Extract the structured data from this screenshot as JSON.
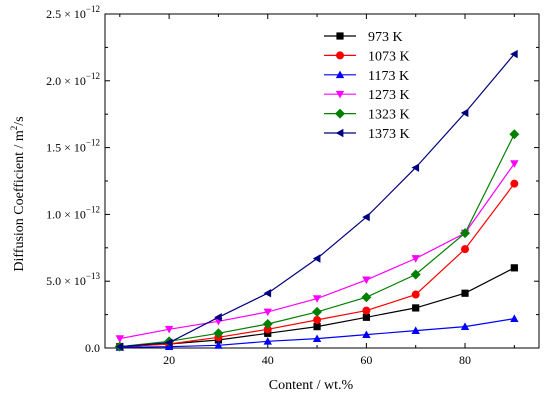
{
  "chart_data": {
    "type": "line",
    "xlabel": "Content / wt.%",
    "ylabel_base": "Diffusion Coefficient / m",
    "ylabel_sup": "2",
    "ylabel_tail": "/s",
    "xlim": [
      7,
      95
    ],
    "ylim": [
      0,
      2.5e-12
    ],
    "x_ticks": [
      20,
      40,
      60,
      80
    ],
    "x_tick_labels": [
      "20",
      "40",
      "60",
      "80"
    ],
    "y_ticks": [
      0,
      5e-13,
      1e-12,
      1.5e-12,
      2e-12,
      2.5e-12
    ],
    "y_tick_labels": [
      {
        "main": "0.0",
        "sup": ""
      },
      {
        "main": "5.0 × 10",
        "sup": "−13"
      },
      {
        "main": "1.0 × 10",
        "sup": "−12"
      },
      {
        "main": "1.5 × 10",
        "sup": "−12"
      },
      {
        "main": "2.0 × 10",
        "sup": "−12"
      },
      {
        "main": "2.5 × 10",
        "sup": "−12"
      }
    ],
    "legend_position": "top-right",
    "x": [
      10,
      20,
      30,
      40,
      50,
      60,
      70,
      80,
      90
    ],
    "series": [
      {
        "name": "973 K",
        "marker": "square",
        "color": "#000000",
        "values": [
          1e-14,
          3e-14,
          6e-14,
          1.1e-13,
          1.6e-13,
          2.3e-13,
          3e-13,
          4.1e-13,
          6e-13
        ]
      },
      {
        "name": "1073 K",
        "marker": "circle",
        "color": "#ff0000",
        "values": [
          1e-14,
          3e-14,
          8e-14,
          1.4e-13,
          2.1e-13,
          2.8e-13,
          4e-13,
          7.4e-13,
          1.23e-12
        ]
      },
      {
        "name": "1173 K",
        "marker": "triangle-up",
        "color": "#0000ff",
        "values": [
          5e-15,
          1e-14,
          2e-14,
          5e-14,
          7e-14,
          1e-13,
          1.3e-13,
          1.6e-13,
          2.2e-13
        ]
      },
      {
        "name": "1273 K",
        "marker": "triangle-down",
        "color": "#ff00ff",
        "values": [
          7e-14,
          1.4e-13,
          2e-13,
          2.7e-13,
          3.7e-13,
          5.1e-13,
          6.7e-13,
          8.6e-13,
          1.38e-12
        ]
      },
      {
        "name": "1323 K",
        "marker": "diamond",
        "color": "#008000",
        "values": [
          1e-14,
          5e-14,
          1.1e-13,
          1.8e-13,
          2.7e-13,
          3.8e-13,
          5.5e-13,
          8.6e-13,
          1.6e-12
        ]
      },
      {
        "name": "1373 K",
        "marker": "triangle-left",
        "color": "#000080",
        "values": [
          1e-14,
          4e-14,
          2.3e-13,
          4.1e-13,
          6.7e-13,
          9.8e-13,
          1.35e-12,
          1.76e-12,
          2.2e-12
        ]
      }
    ]
  }
}
